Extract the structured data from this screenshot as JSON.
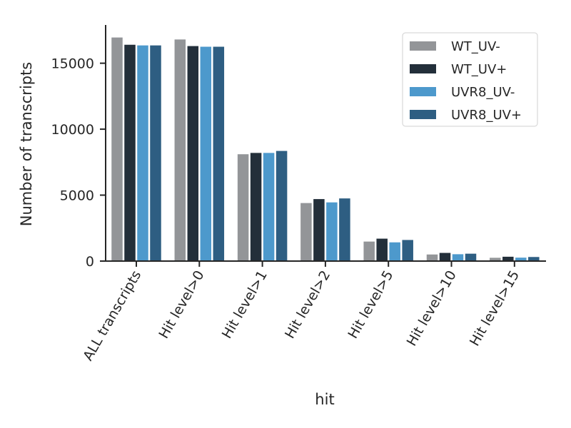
{
  "chart_data": {
    "type": "bar",
    "title": "",
    "xlabel": "hit",
    "ylabel": "Number of transcripts",
    "ylim": [
      0,
      17900
    ],
    "yticks": [
      0,
      5000,
      10000,
      15000
    ],
    "categories": [
      "ALL transcripts",
      "Hit level>0",
      "Hit level>1",
      "Hit level>2",
      "Hit level>5",
      "Hit level>10",
      "Hit level>15"
    ],
    "series": [
      {
        "name": "WT_UV-",
        "color": "#939598",
        "values": [
          16950,
          16800,
          8100,
          4400,
          1480,
          500,
          250
        ]
      },
      {
        "name": "WT_UV+",
        "color": "#232f3a",
        "values": [
          16400,
          16300,
          8200,
          4700,
          1700,
          620,
          330
        ]
      },
      {
        "name": "UVR8_UV-",
        "color": "#4d99cc",
        "values": [
          16350,
          16250,
          8200,
          4450,
          1420,
          520,
          260
        ]
      },
      {
        "name": "UVR8_UV+",
        "color": "#2e5e82",
        "values": [
          16350,
          16250,
          8350,
          4750,
          1600,
          560,
          310
        ]
      }
    ],
    "grid": false,
    "legend_position": "top-right"
  }
}
